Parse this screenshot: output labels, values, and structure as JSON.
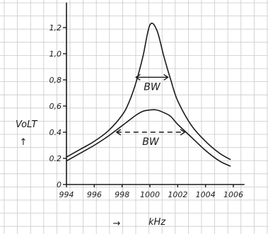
{
  "chart_data": {
    "type": "line",
    "xlabel": "kHz",
    "ylabel": "VoLT",
    "x_ticks": [
      994,
      996,
      998,
      1000,
      1002,
      1004,
      1006
    ],
    "x_tick_labels": [
      "994",
      "996",
      "998",
      "1000",
      "1002",
      "1004",
      "1006"
    ],
    "y_ticks": [
      0,
      0.2,
      0.4,
      0.6,
      0.8,
      1.0,
      1.2
    ],
    "y_tick_labels": [
      "0",
      "0.2",
      "0.4",
      "0,6",
      "0,8",
      "1,0",
      "1,2"
    ],
    "xlim": [
      993.9,
      1006.8
    ],
    "ylim": [
      0,
      1.38
    ],
    "grid": true,
    "series": [
      {
        "x": [
          994.0,
          995.0,
          996.0,
          997.0,
          998.0,
          998.5,
          999.0,
          999.5,
          1000.0,
          1000.5,
          1001.0,
          1001.5,
          1002.0,
          1003.0,
          1004.0,
          1005.0,
          1005.8
        ],
        "y": [
          0.21,
          0.27,
          0.33,
          0.41,
          0.53,
          0.63,
          0.78,
          0.98,
          1.22,
          1.18,
          0.98,
          0.8,
          0.64,
          0.45,
          0.33,
          0.24,
          0.19
        ]
      },
      {
        "x": [
          994.0,
          995.0,
          996.0,
          997.0,
          998.0,
          998.5,
          999.0,
          999.5,
          1000.0,
          1000.5,
          1001.0,
          1001.5,
          1002.0,
          1003.0,
          1004.0,
          1005.0,
          1005.8
        ],
        "y": [
          0.18,
          0.24,
          0.3,
          0.37,
          0.45,
          0.49,
          0.53,
          0.56,
          0.57,
          0.57,
          0.55,
          0.52,
          0.46,
          0.36,
          0.26,
          0.18,
          0.14
        ]
      }
    ],
    "annotations": [
      {
        "text": "BW",
        "x_from": 999.0,
        "x_to": 1001.3,
        "y": 0.82,
        "style": "solid"
      },
      {
        "text": "BW",
        "x_from": 997.6,
        "x_to": 1002.5,
        "y": 0.4,
        "style": "dashed"
      }
    ],
    "xlabel_arrow": "→",
    "ylabel_arrow": "↑",
    "colors": {
      "ink": "#1a1a1a",
      "grid": "#c9c9c9",
      "paper": "#ffffff"
    }
  }
}
